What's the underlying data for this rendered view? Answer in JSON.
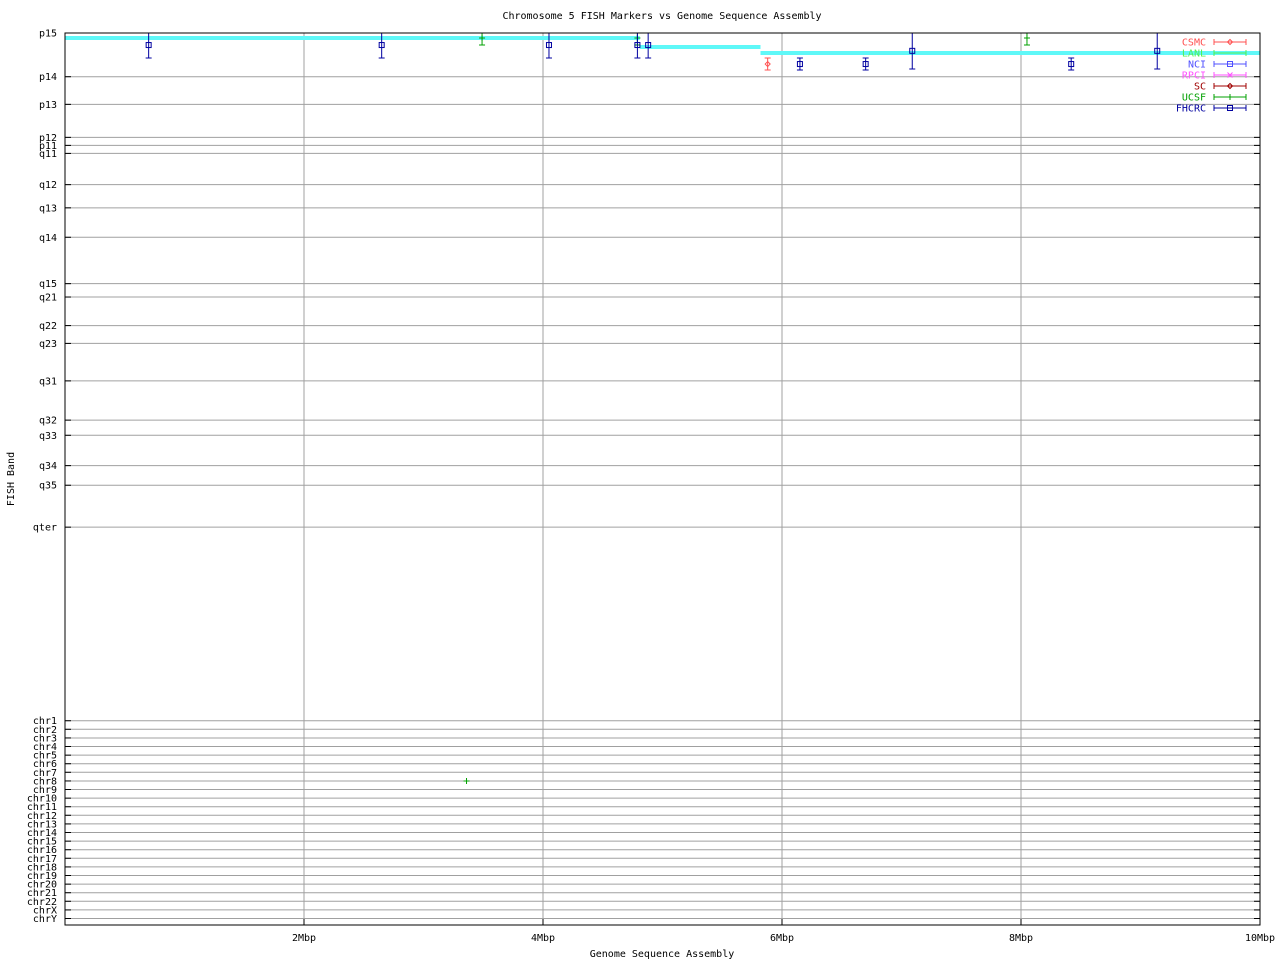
{
  "chart_data": {
    "type": "scatter",
    "title": "Chromosome 5 FISH Markers vs Genome Sequence Assembly",
    "xlabel": "Genome Sequence Assembly",
    "ylabel": "FISH Band",
    "xlim": [
      0,
      10
    ],
    "x_unit": "Mbp",
    "x_ticks": [
      {
        "value": 2,
        "label": "2Mbp"
      },
      {
        "value": 4,
        "label": "4Mbp"
      },
      {
        "value": 6,
        "label": "6Mbp"
      },
      {
        "value": 8,
        "label": "8Mbp"
      },
      {
        "value": 10,
        "label": "10Mbp"
      }
    ],
    "ylim": [
      0,
      100
    ],
    "y_inverted": true,
    "grid": true,
    "legend_position": "top-right",
    "y_ticks": [
      {
        "label": "p15",
        "value": 0
      },
      {
        "label": "p14",
        "value": 4.9
      },
      {
        "label": "p13",
        "value": 8.0
      },
      {
        "label": "p12",
        "value": 11.7
      },
      {
        "label": "p11",
        "value": 12.6
      },
      {
        "label": "q11",
        "value": 13.5
      },
      {
        "label": "q12",
        "value": 17.0
      },
      {
        "label": "q13",
        "value": 19.6
      },
      {
        "label": "q14",
        "value": 22.9
      },
      {
        "label": "q15",
        "value": 28.1
      },
      {
        "label": "q21",
        "value": 29.6
      },
      {
        "label": "q22",
        "value": 32.8
      },
      {
        "label": "q23",
        "value": 34.8
      },
      {
        "label": "q31",
        "value": 39.0
      },
      {
        "label": "q32",
        "value": 43.4
      },
      {
        "label": "q33",
        "value": 45.1
      },
      {
        "label": "q34",
        "value": 48.5
      },
      {
        "label": "q35",
        "value": 50.7
      },
      {
        "label": "qter",
        "value": 55.4
      },
      {
        "label": "chr1",
        "value": 77.1
      },
      {
        "label": "chr2",
        "value": 78.06
      },
      {
        "label": "chr3",
        "value": 79.03
      },
      {
        "label": "chr4",
        "value": 79.99
      },
      {
        "label": "chr5",
        "value": 80.96
      },
      {
        "label": "chr6",
        "value": 81.92
      },
      {
        "label": "chr7",
        "value": 82.88
      },
      {
        "label": "chr8",
        "value": 83.85
      },
      {
        "label": "chr9",
        "value": 84.81
      },
      {
        "label": "chr10",
        "value": 85.78
      },
      {
        "label": "chr11",
        "value": 86.74
      },
      {
        "label": "chr12",
        "value": 87.7
      },
      {
        "label": "chr13",
        "value": 88.67
      },
      {
        "label": "chr14",
        "value": 89.63
      },
      {
        "label": "chr15",
        "value": 90.6
      },
      {
        "label": "chr16",
        "value": 91.56
      },
      {
        "label": "chr17",
        "value": 92.52
      },
      {
        "label": "chr18",
        "value": 93.49
      },
      {
        "label": "chr19",
        "value": 94.45
      },
      {
        "label": "chr20",
        "value": 95.42
      },
      {
        "label": "chr21",
        "value": 96.38
      },
      {
        "label": "chr22",
        "value": 97.34
      },
      {
        "label": "chrX",
        "value": 98.31
      },
      {
        "label": "chrY",
        "value": 99.27
      }
    ],
    "series": [
      {
        "name": "CSMC",
        "color": "#ff5050",
        "marker": "diamond",
        "points": [
          {
            "x": 5.88,
            "y": 3.48,
            "ylow": 2.8,
            "yhigh": 4.15
          }
        ]
      },
      {
        "name": "LANL",
        "color": "#50f050",
        "line_color": "#5ff8f8",
        "marker": "step-line",
        "segments": [
          {
            "x0": 0.0,
            "x1": 4.81,
            "y": 0.56
          },
          {
            "x0": 4.81,
            "x1": 5.82,
            "y": 1.57
          },
          {
            "x0": 5.82,
            "x1": 10.0,
            "y": 2.24
          }
        ]
      },
      {
        "name": "NCI",
        "color": "#5050ff",
        "marker": "square",
        "points": []
      },
      {
        "name": "RPCI",
        "color": "#ff50ff",
        "marker": "cross",
        "points": []
      },
      {
        "name": "SC",
        "color": "#a00000",
        "marker": "diamond",
        "points": []
      },
      {
        "name": "UCSF",
        "color": "#00a000",
        "marker": "plus",
        "points": [
          {
            "x": 3.49,
            "y": 0.56,
            "ylow": 0,
            "yhigh": 1.35
          },
          {
            "x": 4.79,
            "y": 0.56,
            "ylow": 0,
            "yhigh": 1.35
          },
          {
            "x": 8.05,
            "y": 0.56,
            "ylow": 0,
            "yhigh": 1.35
          },
          {
            "x": 3.36,
            "y": 83.85
          }
        ]
      },
      {
        "name": "FHCRC",
        "color": "#0000a0",
        "marker": "square",
        "points": [
          {
            "x": 0.7,
            "y": 1.35,
            "ylow": 0,
            "yhigh": 2.8
          },
          {
            "x": 2.65,
            "y": 1.35,
            "ylow": 0,
            "yhigh": 2.8
          },
          {
            "x": 4.05,
            "y": 1.35,
            "ylow": 0,
            "yhigh": 2.8
          },
          {
            "x": 4.79,
            "y": 1.35,
            "ylow": 0,
            "yhigh": 2.8
          },
          {
            "x": 4.88,
            "y": 1.35,
            "ylow": 0,
            "yhigh": 2.8
          },
          {
            "x": 6.15,
            "y": 3.48,
            "ylow": 2.8,
            "yhigh": 4.15
          },
          {
            "x": 6.7,
            "y": 3.48,
            "ylow": 2.8,
            "yhigh": 4.15
          },
          {
            "x": 7.09,
            "y": 2.0,
            "ylow": 0,
            "yhigh": 4.04
          },
          {
            "x": 8.42,
            "y": 3.48,
            "ylow": 2.8,
            "yhigh": 4.15
          },
          {
            "x": 9.14,
            "y": 2.0,
            "ylow": 0,
            "yhigh": 4.04
          }
        ]
      }
    ]
  }
}
